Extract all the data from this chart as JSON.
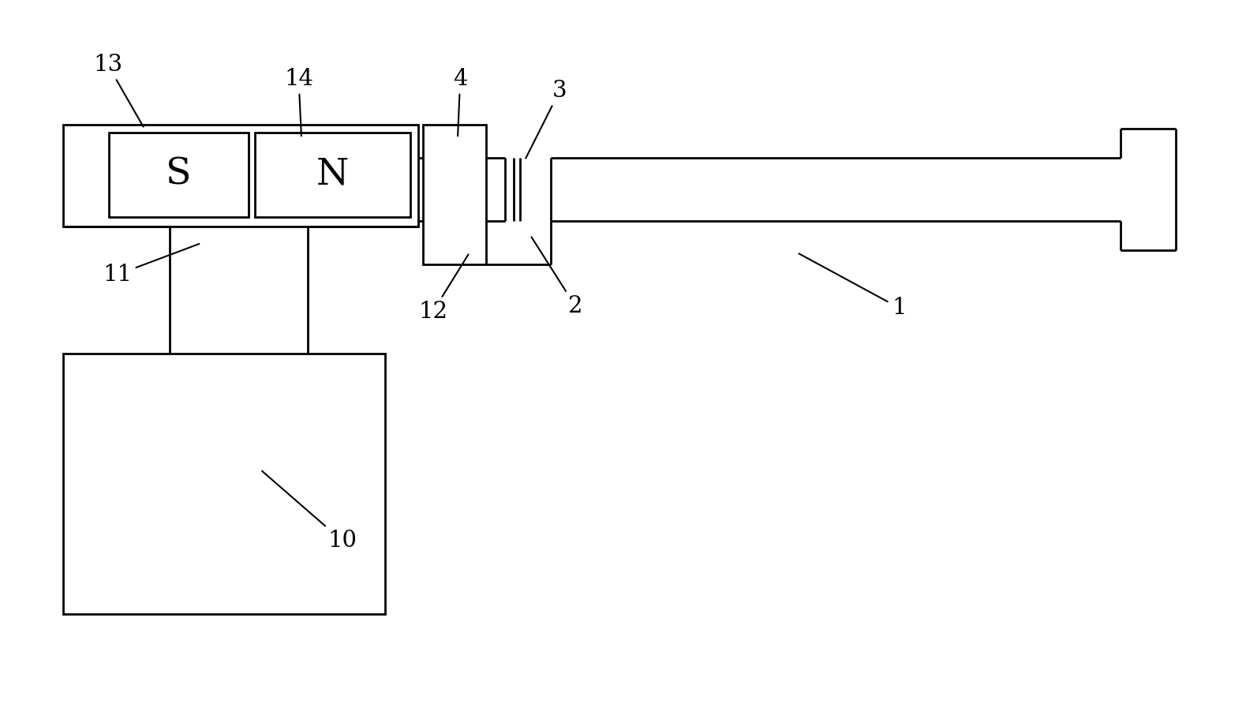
{
  "bg_color": "#ffffff",
  "line_color": "#000000",
  "lw": 2.0,
  "fig_width": 15.79,
  "fig_height": 8.92,
  "dpi": 100
}
